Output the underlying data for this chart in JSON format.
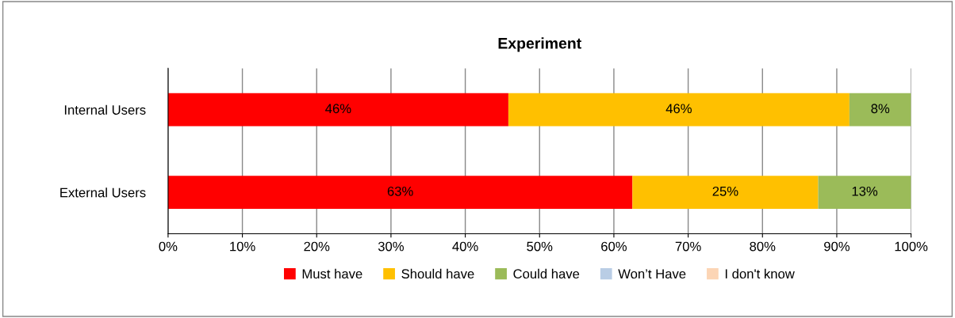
{
  "chart_data": {
    "type": "bar",
    "orientation": "horizontal",
    "stacked": true,
    "title": "Experiment",
    "categories": [
      "Internal Users",
      "External Users"
    ],
    "series": [
      {
        "name": "Must have",
        "color": "#ff0000",
        "values": [
          45.8,
          62.5
        ],
        "value_labels": [
          "46%",
          "63%"
        ]
      },
      {
        "name": "Should have",
        "color": "#ffc000",
        "values": [
          45.9,
          25
        ],
        "value_labels": [
          "46%",
          "25%"
        ]
      },
      {
        "name": "Could have",
        "color": "#9bbb59",
        "values": [
          8.3,
          12.5
        ],
        "value_labels": [
          "8%",
          "13%"
        ]
      },
      {
        "name": "Won’t Have",
        "color": "#b9cde5",
        "values": [
          0,
          0
        ],
        "value_labels": [
          null,
          null
        ]
      },
      {
        "name": "I don't know",
        "color": "#fcd5b5",
        "values": [
          0,
          0
        ],
        "value_labels": [
          null,
          null
        ]
      }
    ],
    "xlim": [
      0,
      100
    ],
    "xticks": [
      {
        "value": 0,
        "label": "0%"
      },
      {
        "value": 10,
        "label": "10%"
      },
      {
        "value": 20,
        "label": "20%"
      },
      {
        "value": 30,
        "label": "30%"
      },
      {
        "value": 40,
        "label": "40%"
      },
      {
        "value": 50,
        "label": "50%"
      },
      {
        "value": 60,
        "label": "60%"
      },
      {
        "value": 70,
        "label": "70%"
      },
      {
        "value": 80,
        "label": "80%"
      },
      {
        "value": 90,
        "label": "90%"
      },
      {
        "value": 100,
        "label": "100%"
      }
    ],
    "grid": "x",
    "legend": "bottom"
  }
}
